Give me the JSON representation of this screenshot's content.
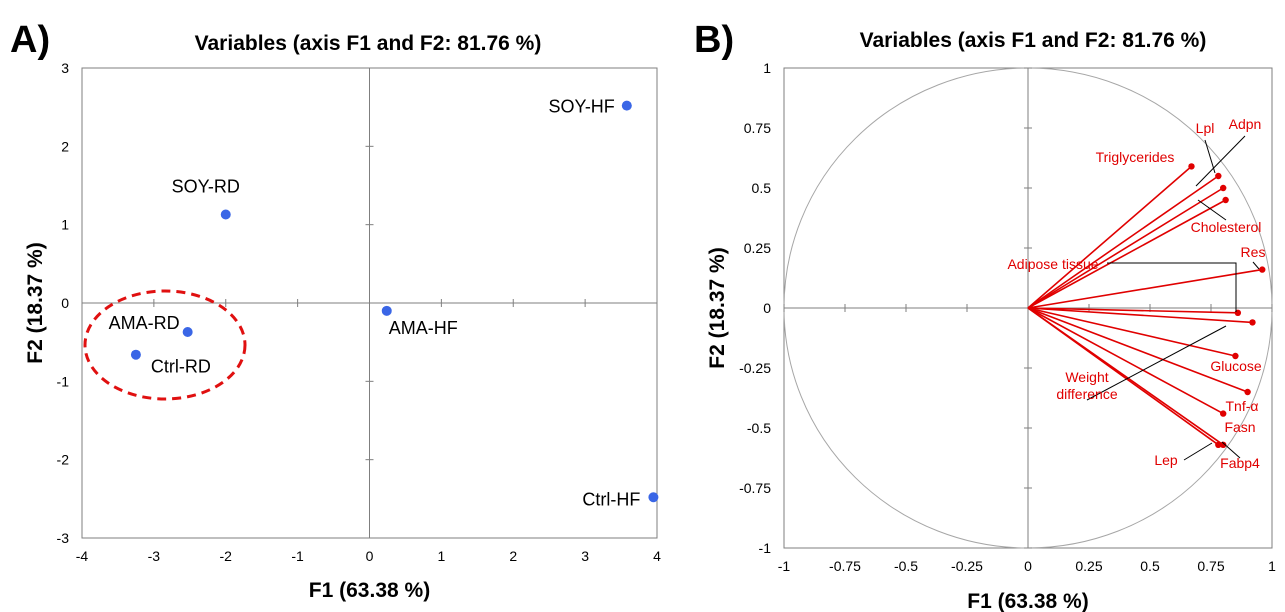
{
  "chart_data": [
    {
      "panel": "A)",
      "type": "scatter",
      "title": "Variables (axis F1 and F2: 81.76 %)",
      "xlabel": "F1 (63.38 %)",
      "ylabel": "F2 (18.37 %)",
      "xlim": [
        -4,
        4
      ],
      "ylim": [
        -3,
        3
      ],
      "xticks": [
        "-4",
        "-3",
        "-2",
        "-1",
        "0",
        "1",
        "2",
        "3",
        "4"
      ],
      "yticks": [
        "-3",
        "-2",
        "-1",
        "0",
        "1",
        "2",
        "3"
      ],
      "point_color": "#3a66e6",
      "points": [
        {
          "label": "SOY-HF",
          "x": 3.58,
          "y": 2.52
        },
        {
          "label": "SOY-RD",
          "x": -2.0,
          "y": 1.13
        },
        {
          "label": "AMA-HF",
          "x": 0.24,
          "y": -0.1
        },
        {
          "label": "AMA-RD",
          "x": -2.53,
          "y": -0.37
        },
        {
          "label": "Ctrl-RD",
          "x": -3.25,
          "y": -0.66
        },
        {
          "label": "Ctrl-HF",
          "x": 3.95,
          "y": -2.48
        }
      ],
      "highlight": {
        "shape": "dashed-ellipse",
        "color": "#e01010",
        "encloses": [
          "AMA-RD",
          "Ctrl-RD"
        ]
      }
    },
    {
      "panel": "B)",
      "type": "scatter",
      "title": "Variables (axis F1 and F2: 81.76 %)",
      "xlabel": "F1 (63.38 %)",
      "ylabel": "F2 (18.37 %)",
      "xlim": [
        -1,
        1
      ],
      "ylim": [
        -1,
        1
      ],
      "xticks": [
        "-1",
        "-0.75",
        "-0.5",
        "-0.25",
        "0",
        "0.25",
        "0.5",
        "0.75",
        "1"
      ],
      "yticks": [
        "-1",
        "-0.75",
        "-0.5",
        "-0.25",
        "0",
        "0.25",
        "0.5",
        "0.75",
        "1"
      ],
      "correlation_circle": true,
      "vector_color": "#e00000",
      "vectors": [
        {
          "label": "Adpn",
          "x": 0.8,
          "y": 0.5
        },
        {
          "label": "Lpl",
          "x": 0.78,
          "y": 0.55
        },
        {
          "label": "Triglycerides",
          "x": 0.67,
          "y": 0.59
        },
        {
          "label": "Cholesterol",
          "x": 0.81,
          "y": 0.45
        },
        {
          "label": "Res",
          "x": 0.96,
          "y": 0.16
        },
        {
          "label": "Adipose tissue",
          "x": 0.86,
          "y": -0.02
        },
        {
          "label": "Weight difference",
          "x": 0.92,
          "y": -0.06
        },
        {
          "label": "Glucose",
          "x": 0.85,
          "y": -0.2
        },
        {
          "label": "Tnf-α",
          "x": 0.9,
          "y": -0.35
        },
        {
          "label": "Fasn",
          "x": 0.8,
          "y": -0.44
        },
        {
          "label": "Lep",
          "x": 0.78,
          "y": -0.57
        },
        {
          "label": "Fabp4",
          "x": 0.8,
          "y": -0.57
        }
      ]
    }
  ]
}
